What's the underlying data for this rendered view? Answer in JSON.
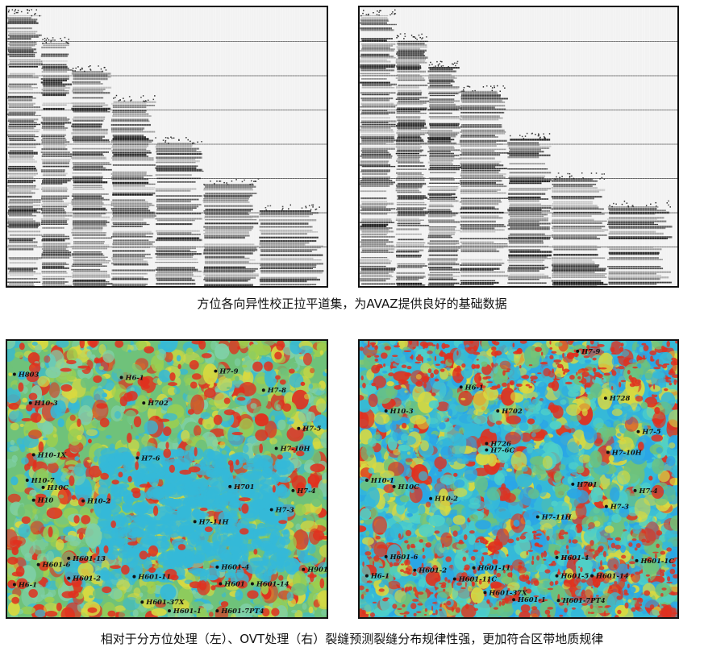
{
  "captions": {
    "top": "方位各向异性校正拉平道集，为AVAZ提供良好的基础数据",
    "bottom": "相对于分方位处理（左）、OVT处理（右）裂缝预测裂缝分布规律性强，更加符合区带地质规律"
  },
  "panels": {
    "gather_left": "azimuthal-gather-left",
    "gather_right": "azimuthal-gather-right",
    "map_left": "fracture-map-azimuth-processing",
    "map_right": "fracture-map-ovt-processing"
  },
  "colors": {
    "map_red": "#e0301e",
    "map_yellow": "#d8d940",
    "map_green": "#6fc27a",
    "map_cyan": "#35b9d8",
    "map_blue": "#2aa6e6",
    "well_marker": "#111111"
  },
  "wells_left": [
    {
      "label": "H803"
    },
    {
      "label": "H6-1"
    },
    {
      "label": "H7-9"
    },
    {
      "label": "H7-8"
    },
    {
      "label": "H10-3"
    },
    {
      "label": "H702"
    },
    {
      "label": "H7-5"
    },
    {
      "label": "H7-10H"
    },
    {
      "label": "H10-1X"
    },
    {
      "label": "H7-6"
    },
    {
      "label": "H10-7"
    },
    {
      "label": "H10C"
    },
    {
      "label": "H701"
    },
    {
      "label": "H7-4"
    },
    {
      "label": "H10"
    },
    {
      "label": "H10-2"
    },
    {
      "label": "H7-3"
    },
    {
      "label": "H7-11H"
    },
    {
      "label": "H601-13"
    },
    {
      "label": "H601-6"
    },
    {
      "label": "H601-4"
    },
    {
      "label": "H901"
    },
    {
      "label": "H6-1"
    },
    {
      "label": "H601-2"
    },
    {
      "label": "H601-11"
    },
    {
      "label": "H601"
    },
    {
      "label": "H601-14"
    },
    {
      "label": "H601-37X"
    },
    {
      "label": "H601-1"
    },
    {
      "label": "H601-7PT4"
    }
  ],
  "wells_right": [
    {
      "label": "H7-9"
    },
    {
      "label": "H6-1"
    },
    {
      "label": "H10-3"
    },
    {
      "label": "H702"
    },
    {
      "label": "H728"
    },
    {
      "label": "H7-5"
    },
    {
      "label": "H726"
    },
    {
      "label": "H7-6C"
    },
    {
      "label": "H7-10H"
    },
    {
      "label": "H10-1"
    },
    {
      "label": "H10C"
    },
    {
      "label": "H701"
    },
    {
      "label": "H7-4"
    },
    {
      "label": "H10-2"
    },
    {
      "label": "H7-3"
    },
    {
      "label": "H7-11H"
    },
    {
      "label": "H601-6"
    },
    {
      "label": "H601-4"
    },
    {
      "label": "H601-1C"
    },
    {
      "label": "H601-2"
    },
    {
      "label": "H601-11"
    },
    {
      "label": "H601-5"
    },
    {
      "label": "H601-14"
    },
    {
      "label": "H6-1"
    },
    {
      "label": "H601-11C"
    },
    {
      "label": "H601-37X"
    },
    {
      "label": "H601-1"
    },
    {
      "label": "H601-7PT4"
    }
  ]
}
